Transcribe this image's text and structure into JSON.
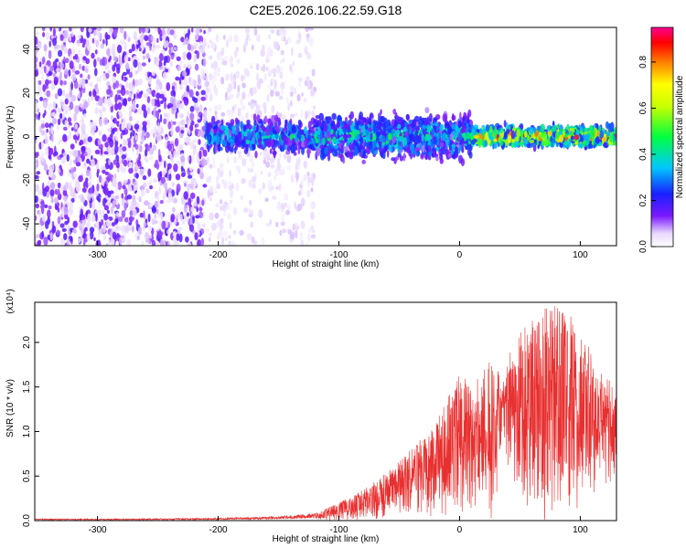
{
  "figure_title": "C2E5.2026.106.22.59.G18",
  "chart_data": [
    {
      "type": "heatmap",
      "title": "C2E5.2026.106.22.59.G18",
      "xlabel": "Height of straight line (km)",
      "ylabel": "Frequency (Hz)",
      "xlim": [
        -352,
        130
      ],
      "ylim": [
        -50,
        50
      ],
      "xticks": [
        -300,
        -200,
        -100,
        0,
        100
      ],
      "yticks": [
        -40,
        -20,
        0,
        20,
        40
      ],
      "colorbar": {
        "label": "Normalized spectral amplitude",
        "range": [
          0.0,
          0.95
        ],
        "ticks": [
          "0.0",
          "0.2",
          "0.4",
          "0.6",
          "0.8"
        ]
      },
      "description_regions": [
        {
          "x_range": [
            -352,
            -210
          ],
          "freq_range": [
            -50,
            50
          ],
          "amplitude": 0.1
        },
        {
          "x_range": [
            -210,
            -120
          ],
          "freq_range": [
            -8,
            10
          ],
          "amplitude": 0.25
        },
        {
          "x_range": [
            -120,
            10
          ],
          "freq_range": [
            -10,
            12
          ],
          "amplitude": 0.3
        },
        {
          "x_range": [
            10,
            130
          ],
          "freq_range": [
            -5,
            5
          ],
          "amplitude": 0.55
        }
      ]
    },
    {
      "type": "line",
      "title": "",
      "xlabel": "Height of straight line (km)",
      "ylabel": "SNR (10 * v/v)",
      "y_multiplier": "(x10⁴)",
      "xlim": [
        -352,
        130
      ],
      "ylim": [
        0,
        2.45
      ],
      "xticks": [
        -300,
        -200,
        -100,
        0,
        100
      ],
      "yticks": [
        "0.0",
        "0.5",
        "1.0",
        "1.5",
        "2.0"
      ],
      "color": "#e83030",
      "envelope": {
        "x": [
          -352,
          -300,
          -250,
          -200,
          -150,
          -120,
          -100,
          -80,
          -60,
          -40,
          -20,
          0,
          10,
          20,
          30,
          35,
          40,
          60,
          80,
          100,
          115,
          130
        ],
        "upper": [
          0.02,
          0.02,
          0.025,
          0.03,
          0.05,
          0.08,
          0.2,
          0.35,
          0.55,
          0.8,
          1.1,
          1.7,
          1.5,
          1.7,
          1.9,
          1.5,
          1.9,
          2.3,
          2.45,
          2.2,
          1.7,
          1.5
        ],
        "lower": [
          0.0,
          0.0,
          0.0,
          0.0,
          0.0,
          0.0,
          0.0,
          0.0,
          0.0,
          0.0,
          0.0,
          0.0,
          0.0,
          0.0,
          0.0,
          1.0,
          0.5,
          0.0,
          0.0,
          0.1,
          0.3,
          0.5
        ]
      }
    }
  ]
}
